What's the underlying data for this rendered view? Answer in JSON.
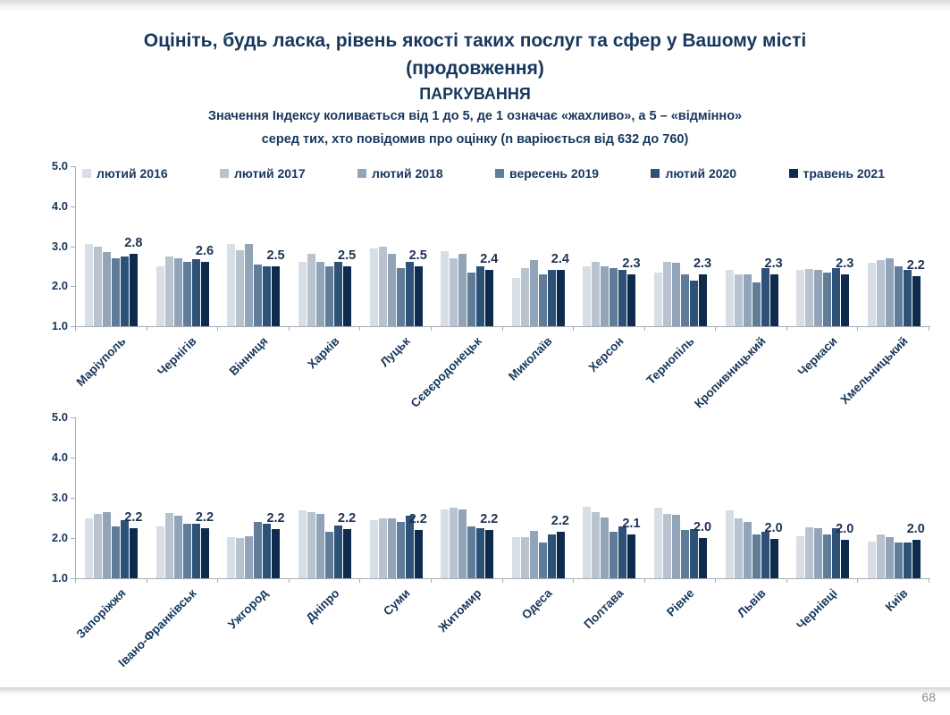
{
  "header": {
    "title_line1": "Оцініть, будь ласка, рівень якості таких послуг та сфер у Вашому місті",
    "title_line2": "(продовження)",
    "section": "ПАРКУВАННЯ",
    "subtitle_line1": "Значення Індексу коливається від 1 до 5, де 1 означає «жахливо», а 5 – «відмінно»",
    "subtitle_line2": "серед тих, хто повідомив про оцінку (n варіюється від 632 до 760)"
  },
  "page": {
    "number": "68"
  },
  "colors": {
    "title": "#17375d",
    "data_label": "#1d3251",
    "axis": "#a6adb5",
    "page_number": "#8a8a8a"
  },
  "chart_data": [
    {
      "type": "bar",
      "title": "ПАРКУВАННЯ — ряд 1",
      "xlabel": "",
      "ylabel": "",
      "ylim": [
        1.0,
        5.0
      ],
      "ytick_labels": [
        "5.0",
        "4.0",
        "3.0",
        "2.0",
        "1.0"
      ],
      "grid": false,
      "legend_position": "top",
      "categories": [
        "Маріуполь",
        "Чернігів",
        "Вінниця",
        "Харків",
        "Луцьк",
        "Сєвєродонецьк",
        "Миколаїв",
        "Херсон",
        "Тернопіль",
        "Кропивницький",
        "Черкаси",
        "Хмельницький"
      ],
      "bar_labels": [
        "2.8",
        "2.6",
        "2.5",
        "2.5",
        "2.5",
        "2.4",
        "2.4",
        "2.3",
        "2.3",
        "2.3",
        "2.3",
        "2.2"
      ],
      "series": [
        {
          "name": "лютий 2016",
          "color": "#d8dee6",
          "values": [
            3.05,
            2.5,
            3.05,
            2.6,
            2.95,
            2.88,
            2.2,
            2.5,
            2.35,
            2.4,
            2.4,
            2.58
          ]
        },
        {
          "name": "лютий 2017",
          "color": "#b9c3cf",
          "values": [
            3.0,
            2.75,
            2.9,
            2.82,
            3.0,
            2.7,
            2.45,
            2.62,
            2.62,
            2.3,
            2.42,
            2.65
          ]
        },
        {
          "name": "лютий 2018",
          "color": "#92a4b8",
          "values": [
            2.85,
            2.7,
            3.05,
            2.6,
            2.8,
            2.8,
            2.65,
            2.5,
            2.58,
            2.3,
            2.4,
            2.7
          ]
        },
        {
          "name": "вересень 2019",
          "color": "#5f7d99",
          "values": [
            2.7,
            2.6,
            2.55,
            2.5,
            2.45,
            2.35,
            2.3,
            2.45,
            2.3,
            2.1,
            2.35,
            2.5
          ]
        },
        {
          "name": "лютий 2020",
          "color": "#2e5277",
          "values": [
            2.75,
            2.68,
            2.5,
            2.6,
            2.6,
            2.5,
            2.4,
            2.4,
            2.15,
            2.45,
            2.45,
            2.4
          ]
        },
        {
          "name": "травень 2021",
          "color": "#0e2a4c",
          "values": [
            2.8,
            2.6,
            2.5,
            2.5,
            2.5,
            2.4,
            2.4,
            2.3,
            2.3,
            2.3,
            2.3,
            2.25
          ]
        }
      ]
    },
    {
      "type": "bar",
      "title": "ПАРКУВАННЯ — ряд 2",
      "xlabel": "",
      "ylabel": "",
      "ylim": [
        1.0,
        5.0
      ],
      "ytick_labels": [
        "5.0",
        "4.0",
        "3.0",
        "2.0",
        "1.0"
      ],
      "grid": false,
      "legend_position": "none",
      "categories": [
        "Запоріжжя",
        "Івано-Франківськ",
        "Ужгород",
        "Дніпро",
        "Суми",
        "Житомир",
        "Одеса",
        "Полтава",
        "Рівне",
        "Львів",
        "Чернівці",
        "Київ"
      ],
      "bar_labels": [
        "2.2",
        "2.2",
        "2.2",
        "2.2",
        "2.2",
        "2.2",
        "2.2",
        "2.1",
        "2.0",
        "2.0",
        "2.0",
        "2.0"
      ],
      "series": [
        {
          "name": "лютий 2016",
          "color": "#d8dee6",
          "values": [
            2.5,
            2.3,
            2.02,
            2.68,
            2.45,
            2.72,
            2.02,
            2.78,
            2.75,
            2.68,
            2.05,
            1.92
          ]
        },
        {
          "name": "лютий 2017",
          "color": "#b9c3cf",
          "values": [
            2.6,
            2.62,
            2.0,
            2.65,
            2.5,
            2.75,
            2.03,
            2.65,
            2.6,
            2.5,
            2.27,
            2.08
          ]
        },
        {
          "name": "лютий 2018",
          "color": "#92a4b8",
          "values": [
            2.65,
            2.55,
            2.05,
            2.6,
            2.48,
            2.72,
            2.18,
            2.52,
            2.58,
            2.4,
            2.25,
            2.03
          ]
        },
        {
          "name": "вересень 2019",
          "color": "#5f7d99",
          "values": [
            2.28,
            2.35,
            2.4,
            2.15,
            2.4,
            2.3,
            1.9,
            2.15,
            2.2,
            2.1,
            2.1,
            1.9
          ]
        },
        {
          "name": "лютий 2020",
          "color": "#2e5277",
          "values": [
            2.45,
            2.35,
            2.35,
            2.32,
            2.55,
            2.25,
            2.08,
            2.3,
            2.22,
            2.15,
            2.25,
            1.9
          ]
        },
        {
          "name": "травень 2021",
          "color": "#0e2a4c",
          "values": [
            2.25,
            2.25,
            2.22,
            2.22,
            2.2,
            2.2,
            2.15,
            2.1,
            2.0,
            1.97,
            1.95,
            1.95
          ]
        }
      ]
    }
  ]
}
